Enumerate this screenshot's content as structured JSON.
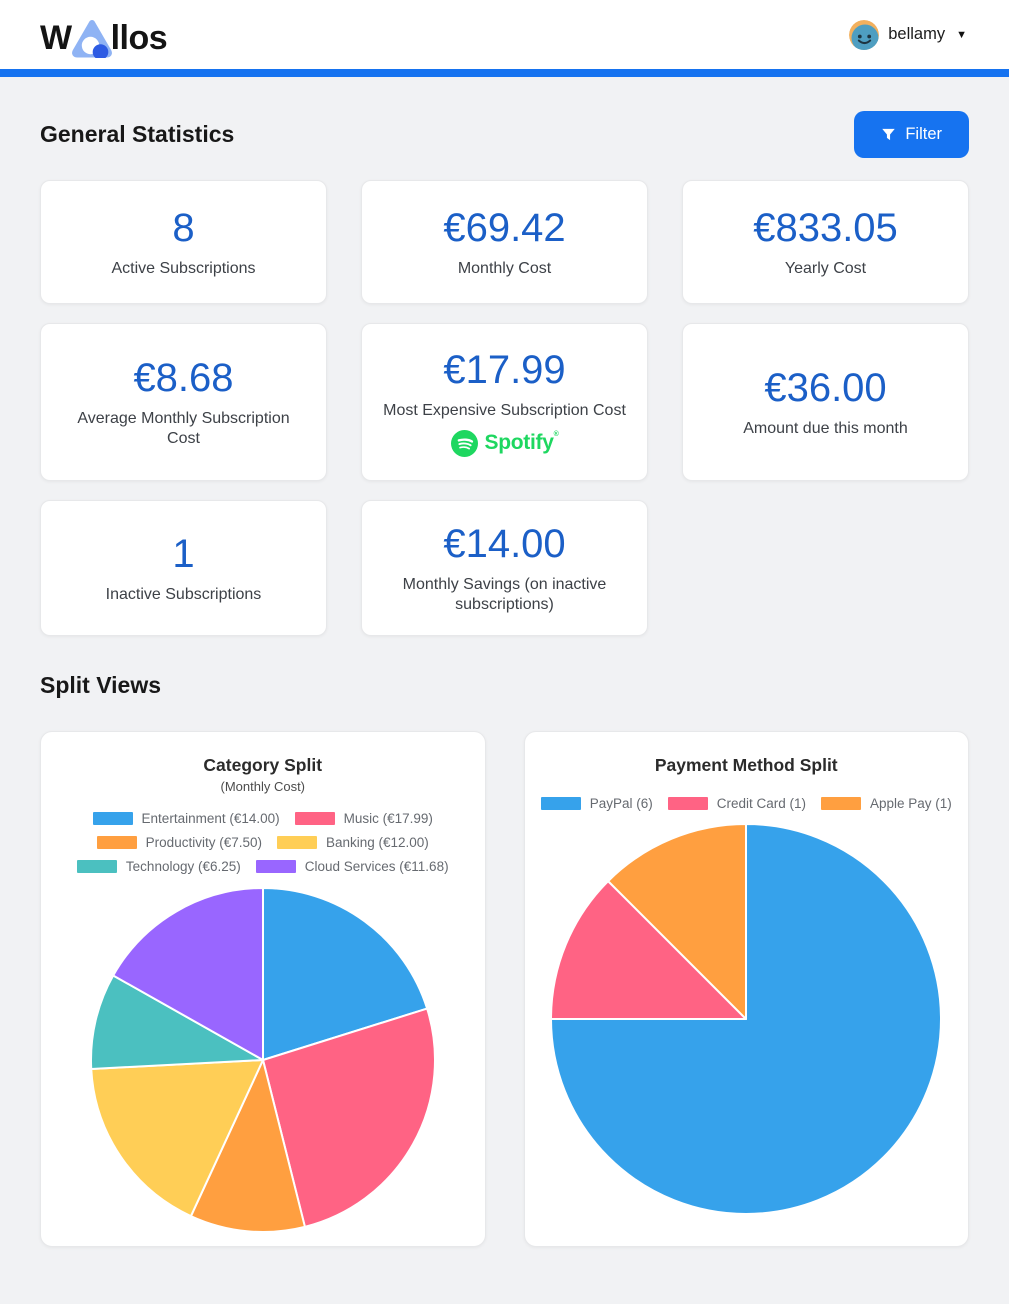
{
  "header": {
    "logo_left": "W",
    "logo_right": "llos",
    "username": "bellamy",
    "caret": "▼"
  },
  "theme": {
    "accent_blue": "#1673f0",
    "stat_number_blue": "#1b5fc7",
    "spotify_green": "#1ed760",
    "page_background": "#f1f2f4"
  },
  "general": {
    "title": "General Statistics",
    "filter_label": "Filter",
    "cards": [
      {
        "value": "8",
        "label": "Active Subscriptions"
      },
      {
        "value": "€69.42",
        "label": "Monthly Cost"
      },
      {
        "value": "€833.05",
        "label": "Yearly Cost"
      },
      {
        "value": "€8.68",
        "label": "Average Monthly Subscription Cost"
      },
      {
        "value": "€17.99",
        "label": "Most Expensive Subscription Cost",
        "brand": "Spotify"
      },
      {
        "value": "€36.00",
        "label": "Amount due this month"
      },
      {
        "value": "1",
        "label": "Inactive Subscriptions"
      },
      {
        "value": "€14.00",
        "label": "Monthly Savings (on inactive subscriptions)"
      }
    ]
  },
  "split": {
    "title": "Split Views"
  },
  "chart_data": [
    {
      "type": "pie",
      "title": "Category Split",
      "subtitle": "(Monthly Cost)",
      "legend_position": "top",
      "labels": [
        "Entertainment (€14.00)",
        "Music (€17.99)",
        "Productivity (€7.50)",
        "Banking (€12.00)",
        "Technology (€6.25)",
        "Cloud Services (€11.68)"
      ],
      "values": [
        14.0,
        17.99,
        7.5,
        12.0,
        6.25,
        11.68
      ],
      "colors": [
        "#36A2EB",
        "#FF6384",
        "#FF9F40",
        "#FFCE56",
        "#4BC0C0",
        "#9966FF"
      ],
      "start_angle_deg": 0,
      "direction": "clockwise"
    },
    {
      "type": "pie",
      "title": "Payment Method Split",
      "legend_position": "top",
      "labels": [
        "PayPal (6)",
        "Credit Card (1)",
        "Apple Pay (1)"
      ],
      "values": [
        6,
        1,
        1
      ],
      "colors": [
        "#36A2EB",
        "#FF6384",
        "#FF9F40"
      ],
      "start_angle_deg": 0,
      "direction": "clockwise"
    }
  ]
}
